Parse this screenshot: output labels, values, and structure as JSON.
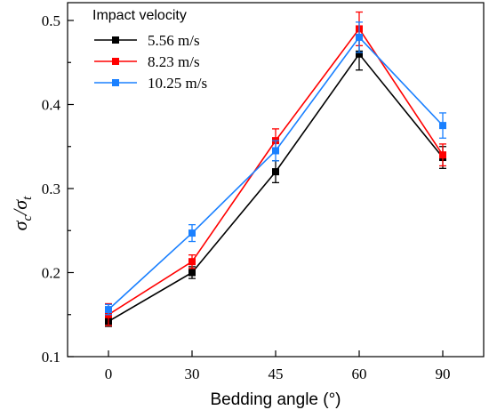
{
  "chart_data": {
    "type": "line",
    "x": [
      0,
      30,
      45,
      60,
      90
    ],
    "xlabel": "Bedding angle (°)",
    "ylabel": {
      "base_symbol": "σ",
      "numerator_sub": "c",
      "slash": "/",
      "denominator_sub": "t"
    },
    "ylim": [
      0.1,
      0.5
    ],
    "yticks": [
      "0.1",
      "0.2",
      "0.3",
      "0.4",
      "0.5"
    ],
    "xticks": [
      "0",
      "30",
      "45",
      "60",
      "90"
    ],
    "grid": false,
    "legend": {
      "title": "Impact velocity",
      "placement": "top-left"
    },
    "series": [
      {
        "name": "5.56 m/s",
        "color": "#000000",
        "values": [
          0.142,
          0.2,
          0.32,
          0.46,
          0.337
        ],
        "errors": [
          0.006,
          0.007,
          0.013,
          0.019,
          0.013
        ]
      },
      {
        "name": "8.23 m/s",
        "color": "#ff0000",
        "values": [
          0.15,
          0.213,
          0.357,
          0.49,
          0.34
        ],
        "errors": [
          0.013,
          0.008,
          0.014,
          0.02,
          0.013
        ]
      },
      {
        "name": "10.25 m/s",
        "color": "#1a80ff",
        "values": [
          0.156,
          0.247,
          0.345,
          0.48,
          0.375
        ],
        "errors": [
          0.006,
          0.01,
          0.012,
          0.018,
          0.015
        ]
      }
    ]
  }
}
